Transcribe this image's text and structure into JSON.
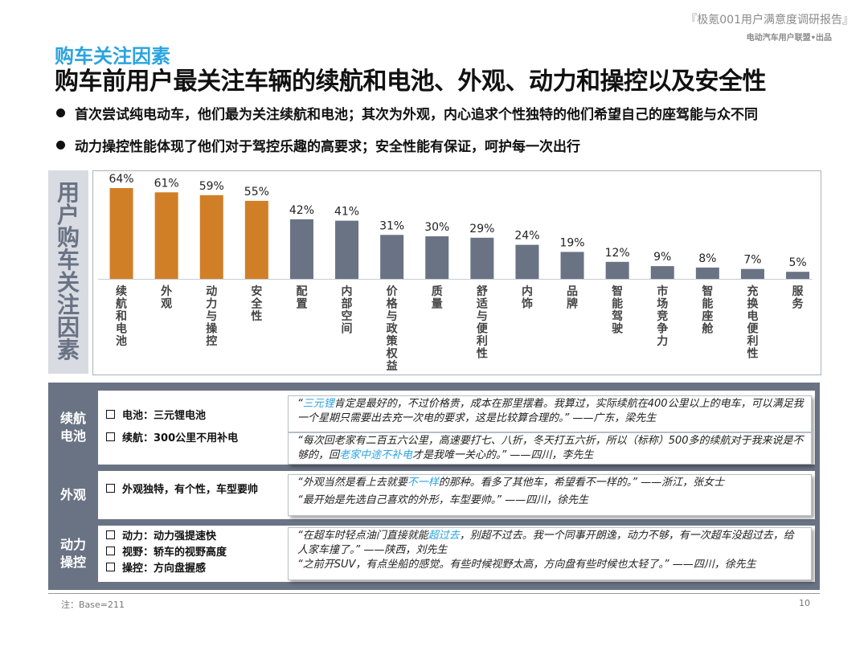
{
  "header": {
    "report_title": "『极氪001用户满意度调研报告』",
    "report_sub": "电动汽车用户联盟•出品"
  },
  "section_title": "购车关注因素",
  "headline": "购车前用户最关注车辆的续航和电池、外观、动力和操控以及安全性",
  "bullets": [
    "首次尝试纯电动车，他们最为关注续航和电池；其次为外观，内心追求个性独特的他们希望自己的座驾能与众不同",
    "动力操控性能体现了他们对于驾控乐趣的高要求；安全性能有保证，呵护每一次出行"
  ],
  "chart_data": {
    "type": "bar",
    "side_label": "用户购车关注因素",
    "categories": [
      "续航和电池",
      "外观",
      "动力与操控",
      "安全性",
      "配置",
      "内部空间",
      "价格与政策权益",
      "质量",
      "舒适与便利性",
      "内饰",
      "品牌",
      "智能驾驶",
      "市场竞争力",
      "智能座舱",
      "充换电便利性",
      "服务"
    ],
    "values": [
      64,
      61,
      59,
      55,
      42,
      41,
      31,
      30,
      29,
      24,
      19,
      12,
      9,
      8,
      7,
      5
    ],
    "value_labels": [
      "64%",
      "61%",
      "59%",
      "55%",
      "42%",
      "41%",
      "31%",
      "30%",
      "29%",
      "24%",
      "19%",
      "12%",
      "9%",
      "8%",
      "7%",
      "5%"
    ],
    "highlight_count": 4,
    "colors": {
      "highlight": "#d17f26",
      "normal": "#6a7384"
    },
    "ylim": [
      0,
      70
    ]
  },
  "panel": {
    "groups": [
      {
        "label": "续航\n电池",
        "features": [
          "电池：三元锂电池",
          "续航：300公里不用补电"
        ],
        "quotes": [
          [
            {
              "t": "“"
            },
            {
              "t": "三元锂",
              "hl": true
            },
            {
              "t": "肯定是最好的，不过价格贵，成本在那里摆着。我算过，实际续航在400公里以上的电车，可以满足我一个星期只需要出去充一次电的要求，这是比较算合理的。” ——广东，梁先生"
            }
          ],
          [
            {
              "t": "“每次回老家有二百五六公里，高速要打七、八折，冬天打五六折，所以（标称）500多的续航对于我来说是不够的，回"
            },
            {
              "t": "老家中途不补电",
              "hl": true
            },
            {
              "t": "才是我唯一关心的。” ——四川，李先生"
            }
          ]
        ]
      },
      {
        "label": "外观",
        "features": [
          "外观独特，有个性，车型要帅"
        ],
        "quotes": [
          [
            {
              "t": "“外观当然是看上去就要"
            },
            {
              "t": "不一样",
              "hl": true
            },
            {
              "t": "的那种。看多了其他车，希望看不一样的。” ——浙江，张女士"
            }
          ],
          [
            {
              "t": "“最开始是先选自己喜欢的外形，车型要帅。” ——四川，徐先生"
            }
          ]
        ]
      },
      {
        "label": "动力\n操控",
        "features": [
          "动力：动力强提速快",
          "视野：轿车的视野高度",
          "操控：方向盘握感"
        ],
        "quotes": [
          [
            {
              "t": "“在超车时轻点油门直接就能"
            },
            {
              "t": "超过去",
              "hl": true
            },
            {
              "t": "，别超不过去。我一个同事开朗逸，动力不够，有一次超车没超过去，给人家车撞了。” ——陕西，刘先生"
            }
          ],
          [
            {
              "t": "“之前开SUV，有点坐船的感觉。有些时候视野太高，方向盘有些时候也太轻了。” ——四川，徐先生"
            }
          ]
        ]
      }
    ]
  },
  "footnote": "注：Base=211",
  "page_number": "10"
}
